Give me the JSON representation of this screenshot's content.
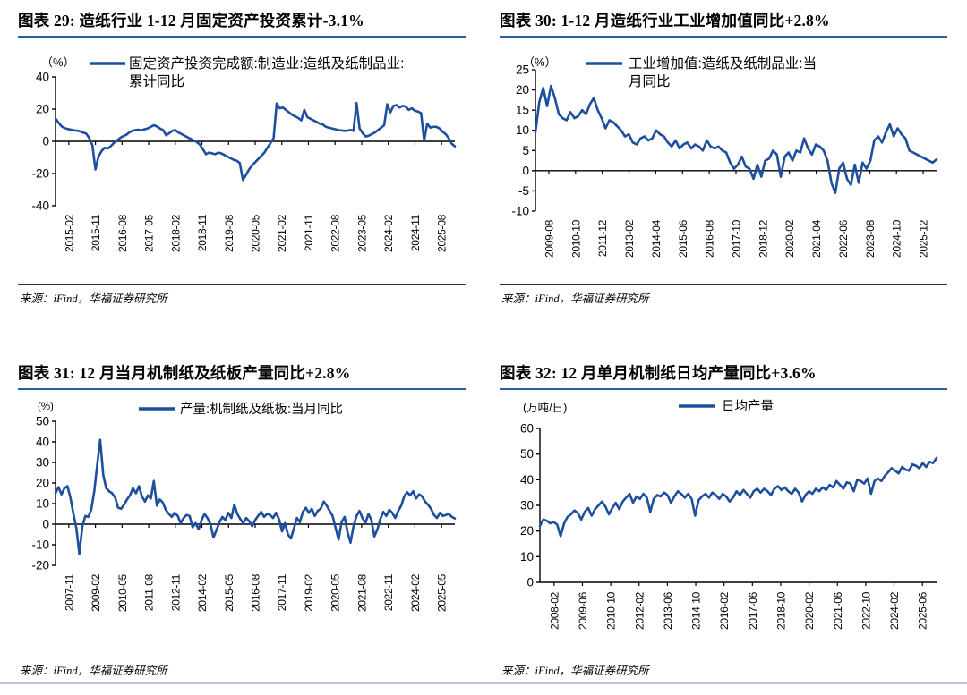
{
  "colors": {
    "line": "#1e4f9e",
    "title_rule": "#2b5ea7",
    "source_rule": "#28324e",
    "footer_rule": "#b9c6e2",
    "axis": "#000000"
  },
  "chart_data": [
    {
      "type": "line",
      "figure_label": "图表 29",
      "title": "图表 29:  造纸行业 1-12 月固定资产投资累计-3.1%",
      "unit": "（%）",
      "legend_lines": [
        "固定资产投资完成额:制造业:造纸及纸制品业:",
        "累计同比"
      ],
      "legend_name": "固定资产投资完成额:制造业:造纸及纸制品业:累计同比",
      "ylim": [
        -40,
        40
      ],
      "y_ticks": [
        40,
        20,
        0,
        -20,
        -40
      ],
      "grid": false,
      "x_tick_labels": [
        "2015-02",
        "2015-11",
        "2016-08",
        "2017-05",
        "2018-02",
        "2018-11",
        "2019-08",
        "2020-05",
        "2021-02",
        "2021-11",
        "2022-08",
        "2023-05",
        "2024-02",
        "2024-11",
        "2025-08"
      ],
      "series": [
        {
          "name": "固定资产投资完成额:制造业:造纸及纸制品业:累计同比",
          "values": [
            14.2,
            11.5,
            9.2,
            8.2,
            7.6,
            7.2,
            6.8,
            6.6,
            6.2,
            5.4,
            4.8,
            2.0,
            -2.5,
            -17.5,
            -9.5,
            -6.0,
            -4.0,
            -4.5,
            -3.0,
            -1.0,
            0.5,
            2.0,
            3.2,
            4.0,
            5.5,
            6.5,
            7.0,
            7.2,
            6.8,
            7.5,
            8.0,
            9.0,
            10.0,
            9.2,
            8.0,
            7.0,
            3.8,
            5.0,
            6.5,
            7.0,
            5.5,
            4.5,
            3.5,
            2.5,
            1.5,
            0.5,
            -0.5,
            -2.0,
            -5.0,
            -8.0,
            -7.0,
            -7.5,
            -8.0,
            -7.0,
            -7.5,
            -8.5,
            -9.5,
            -10.5,
            -11.5,
            -12.0,
            -13.5,
            -24.0,
            -21.0,
            -17.5,
            -15.0,
            -13.0,
            -11.0,
            -9.0,
            -7.0,
            -4.0,
            -1.0,
            2.0,
            23.5,
            20.5,
            21.0,
            19.5,
            18.0,
            16.5,
            15.5,
            14.5,
            13.0,
            19.5,
            15.0,
            14.0,
            13.0,
            12.0,
            11.0,
            10.5,
            9.0,
            8.5,
            8.0,
            7.5,
            7.0,
            6.8,
            6.5,
            6.6,
            7.0,
            6.5,
            23.8,
            8.0,
            5.0,
            3.0,
            3.5,
            4.5,
            5.5,
            7.0,
            8.5,
            10.0,
            23.0,
            18.0,
            22.0,
            22.5,
            21.0,
            22.0,
            21.5,
            19.5,
            20.5,
            19.0,
            18.5,
            17.5,
            0.5,
            11.0,
            8.5,
            9.0,
            9.0,
            8.0,
            6.0,
            4.5,
            2.0,
            -1.5,
            -3.1
          ]
        }
      ],
      "source": "来源：iFind，华福证券研究所"
    },
    {
      "type": "line",
      "figure_label": "图表 30",
      "title": "图表 30:  1-12 月造纸行业工业增加值同比+2.8%",
      "unit": "（%）",
      "legend_lines": [
        "工业增加值:造纸及纸制品业:当",
        "月同比"
      ],
      "legend_name": "工业增加值:造纸及纸制品业:当月同比",
      "ylim": [
        -10,
        25
      ],
      "y_ticks": [
        25,
        20,
        15,
        10,
        5,
        0,
        -5,
        -10
      ],
      "grid": false,
      "x_tick_labels": [
        "2009-08",
        "2010-10",
        "2011-12",
        "2013-02",
        "2014-04",
        "2015-06",
        "2016-08",
        "2017-10",
        "2018-12",
        "2020-02",
        "2021-04",
        "2022-06",
        "2023-08",
        "2024-10",
        "2025-12"
      ],
      "series": [
        {
          "name": "工业增加值:造纸及纸制品业:当月同比",
          "values": [
            9.5,
            17.0,
            20.5,
            16.0,
            21.0,
            18.0,
            14.0,
            13.0,
            12.5,
            14.5,
            13.0,
            13.5,
            15.0,
            14.0,
            16.5,
            18.0,
            15.0,
            13.0,
            10.5,
            12.5,
            12.0,
            11.0,
            10.0,
            8.5,
            9.0,
            7.0,
            6.5,
            8.0,
            8.5,
            7.5,
            8.0,
            10.0,
            9.0,
            8.5,
            7.0,
            6.0,
            7.5,
            5.5,
            6.5,
            7.0,
            5.5,
            6.5,
            6.0,
            5.0,
            7.5,
            6.0,
            5.5,
            6.0,
            5.0,
            4.5,
            2.0,
            0.5,
            1.5,
            3.5,
            1.0,
            0.5,
            -2.0,
            1.5,
            -1.5,
            2.5,
            3.0,
            5.0,
            4.0,
            -1.5,
            3.5,
            4.5,
            2.5,
            5.0,
            4.5,
            8.0,
            5.5,
            4.0,
            6.5,
            6.0,
            5.0,
            2.5,
            -3.0,
            -5.5,
            0.5,
            2.0,
            -2.0,
            -3.5,
            1.5,
            -3.0,
            2.0,
            0.5,
            2.5,
            7.5,
            8.5,
            7.0,
            9.5,
            11.5,
            8.5,
            10.5,
            9.0,
            8.0,
            5.0,
            4.5,
            4.0,
            3.5,
            3.0,
            2.5,
            2.0,
            2.8
          ]
        }
      ],
      "source": "来源：iFind，华福证券研究所"
    },
    {
      "type": "line",
      "figure_label": "图表 31",
      "title": "图表 31:  12 月当月机制纸及纸板产量同比+2.8%",
      "unit": "(%)",
      "legend_lines": [
        "产量:机制纸及纸板:当月同比"
      ],
      "legend_name": "产量:机制纸及纸板:当月同比",
      "ylim": [
        -20,
        50
      ],
      "y_ticks": [
        50,
        40,
        30,
        20,
        10,
        0,
        -10,
        -20
      ],
      "grid": false,
      "x_tick_labels": [
        "2007-11",
        "2009-02",
        "2010-05",
        "2011-08",
        "2012-11",
        "2014-02",
        "2015-05",
        "2016-08",
        "2017-11",
        "2019-02",
        "2020-05",
        "2021-08",
        "2022-11",
        "2024-02",
        "2025-05"
      ],
      "series": [
        {
          "name": "产量:机制纸及纸板:当月同比",
          "values": [
            15,
            18,
            14.5,
            17.5,
            18.5,
            13,
            5,
            -2,
            -14.5,
            -1,
            4,
            3.5,
            7,
            16,
            29,
            41,
            24,
            17.5,
            16,
            15,
            13,
            8,
            7.5,
            9.5,
            12,
            14,
            17.5,
            15,
            18.5,
            13.5,
            11,
            14,
            12.5,
            21,
            9,
            12,
            10.5,
            7,
            5,
            3.5,
            5.5,
            4,
            0.5,
            3,
            4.5,
            4,
            -1.5,
            0.5,
            -2.5,
            2,
            5,
            3,
            0,
            -6.5,
            -3,
            1,
            3.5,
            2,
            5.5,
            3,
            9.5,
            5,
            2.5,
            0.5,
            3,
            1.5,
            -1,
            2,
            4,
            6,
            3.5,
            5,
            4.5,
            3,
            5.5,
            2.5,
            -3.5,
            0.5,
            -5,
            -7,
            -2,
            3,
            1,
            6,
            8,
            5.5,
            7.5,
            4,
            6.5,
            7.5,
            11,
            9,
            6.5,
            4,
            -2,
            -7.5,
            1,
            3.5,
            -4,
            -9,
            -1,
            4,
            6.5,
            3,
            0.5,
            5,
            2,
            -6,
            -2.5,
            2.5,
            6,
            4,
            7,
            5.5,
            3,
            6.5,
            9,
            13.5,
            15.5,
            14,
            16,
            12.5,
            14.5,
            13.5,
            11,
            9.5,
            7.5,
            4.5,
            3,
            5.5,
            4,
            4.5,
            5,
            3.5,
            2.8
          ]
        }
      ],
      "source": "来源：iFind，华福证券研究所"
    },
    {
      "type": "line",
      "figure_label": "图表 32",
      "title": "图表 32:  12 月单月机制纸日均产量同比+3.6%",
      "unit": "(万吨/日)",
      "legend_lines": [
        "日均产量"
      ],
      "legend_name": "日均产量",
      "ylim": [
        0,
        60
      ],
      "y_ticks": [
        60,
        50,
        40,
        30,
        20,
        10,
        0
      ],
      "grid": false,
      "x_tick_labels": [
        "2008-02",
        "2009-06",
        "2010-10",
        "2012-02",
        "2013-06",
        "2014-10",
        "2016-02",
        "2017-06",
        "2018-10",
        "2020-02",
        "2021-06",
        "2022-10",
        "2024-02",
        "2025-06"
      ],
      "series": [
        {
          "name": "日均产量",
          "values": [
            22,
            24.5,
            24,
            23,
            23.5,
            22.5,
            18,
            23,
            25.5,
            26.5,
            28,
            27,
            24.5,
            27.5,
            29,
            26,
            28.5,
            30,
            31.5,
            29.5,
            26.5,
            29,
            31,
            28.5,
            31.5,
            33,
            34.5,
            31,
            33.5,
            32.5,
            34.5,
            33,
            27.5,
            32.5,
            34,
            33.5,
            35,
            34,
            31,
            33.5,
            35.5,
            34.5,
            33,
            34.5,
            32.5,
            26,
            32,
            33.5,
            34.5,
            33,
            35,
            34,
            32.5,
            34.5,
            33.5,
            31.5,
            33,
            35.5,
            34,
            36,
            34.5,
            33,
            35.5,
            36.5,
            35,
            36.5,
            35.5,
            34,
            36.5,
            37.5,
            36,
            37,
            35.5,
            34.5,
            36.5,
            35,
            31.5,
            34,
            35.5,
            34.5,
            36.5,
            35.5,
            37,
            36,
            38,
            37,
            39.5,
            38,
            36.5,
            39,
            38.5,
            35.5,
            40,
            39.5,
            38.5,
            40.5,
            34.5,
            39.5,
            40.5,
            39.5,
            41.5,
            43,
            44.5,
            43.5,
            42.5,
            45,
            44,
            43.5,
            46,
            45.5,
            44.5,
            46.5,
            45,
            47,
            46.5,
            48.5
          ]
        }
      ],
      "source": "来源：iFind，华福证券研究所"
    }
  ]
}
